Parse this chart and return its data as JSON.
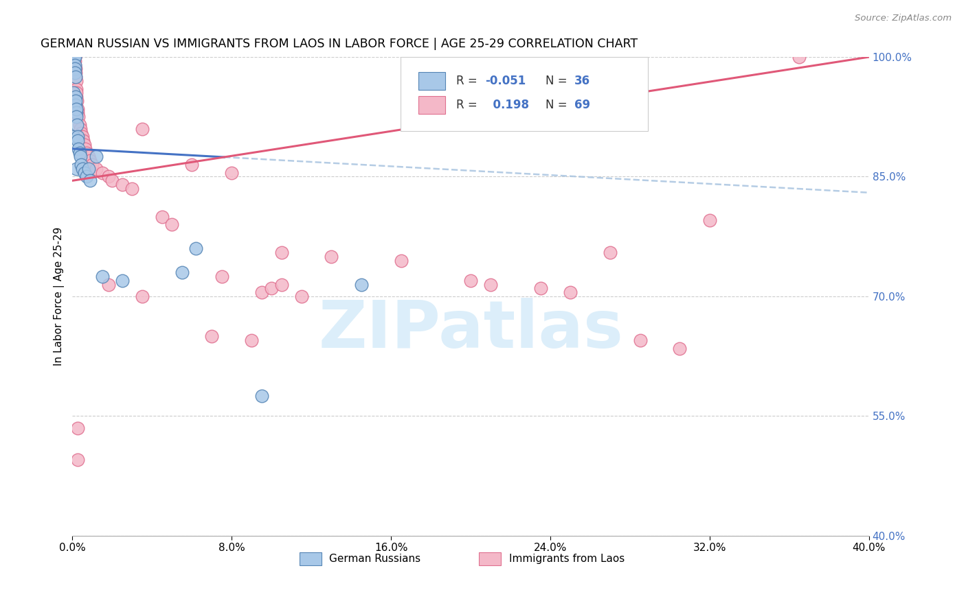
{
  "title": "GERMAN RUSSIAN VS IMMIGRANTS FROM LAOS IN LABOR FORCE | AGE 25-29 CORRELATION CHART",
  "source": "Source: ZipAtlas.com",
  "ylabel": "In Labor Force | Age 25-29",
  "y_ticks": [
    40.0,
    55.0,
    70.0,
    85.0,
    100.0
  ],
  "x_ticks": [
    0.0,
    8.0,
    16.0,
    24.0,
    32.0,
    40.0
  ],
  "legend_label1": "German Russians",
  "legend_label2": "Immigrants from Laos",
  "R1": "-0.051",
  "N1": "36",
  "R2": "0.198",
  "N2": "69",
  "color_blue_fill": "#a8c8e8",
  "color_blue_edge": "#5585b5",
  "color_pink_fill": "#f4b8c8",
  "color_pink_edge": "#e07090",
  "color_blue_line": "#4472c4",
  "color_pink_line": "#e05878",
  "color_blue_dashed": "#a8c4e0",
  "watermark_text_color": "#dceefa",
  "blue_line_x0": 0.0,
  "blue_line_y0": 88.5,
  "blue_line_x1": 40.0,
  "blue_line_y1": 83.0,
  "pink_line_x0": 0.0,
  "pink_line_y0": 84.5,
  "pink_line_x1": 40.0,
  "pink_line_y1": 100.0,
  "blue_x": [
    0.05,
    0.05,
    0.07,
    0.08,
    0.1,
    0.12,
    0.12,
    0.13,
    0.14,
    0.15,
    0.15,
    0.16,
    0.17,
    0.18,
    0.19,
    0.2,
    0.2,
    0.22,
    0.25,
    0.27,
    0.3,
    0.35,
    0.4,
    0.45,
    0.5,
    0.6,
    0.7,
    0.8,
    0.9,
    1.2,
    1.5,
    2.5,
    5.5,
    6.2,
    9.5,
    14.5
  ],
  "blue_y": [
    95.5,
    90.0,
    100.0,
    100.0,
    100.0,
    100.0,
    99.0,
    98.5,
    98.0,
    97.5,
    95.0,
    94.0,
    94.5,
    93.0,
    93.5,
    92.5,
    86.0,
    91.5,
    90.0,
    89.5,
    88.5,
    88.0,
    87.5,
    86.5,
    86.0,
    85.5,
    85.0,
    86.0,
    84.5,
    87.5,
    72.5,
    72.0,
    73.0,
    76.0,
    57.5,
    71.5
  ],
  "pink_x": [
    0.03,
    0.04,
    0.05,
    0.06,
    0.07,
    0.08,
    0.09,
    0.1,
    0.1,
    0.11,
    0.12,
    0.13,
    0.14,
    0.15,
    0.16,
    0.17,
    0.18,
    0.19,
    0.2,
    0.21,
    0.22,
    0.25,
    0.28,
    0.3,
    0.35,
    0.4,
    0.45,
    0.5,
    0.55,
    0.6,
    0.65,
    0.7,
    0.8,
    0.9,
    1.0,
    1.2,
    1.5,
    1.8,
    2.0,
    2.5,
    3.0,
    3.5,
    4.5,
    5.0,
    6.0,
    7.5,
    8.0,
    9.5,
    10.0,
    10.5,
    11.5,
    13.0,
    16.5,
    20.0,
    21.0,
    23.5,
    25.0,
    27.0,
    28.5,
    30.5,
    32.0,
    36.5,
    0.25,
    0.25,
    1.8,
    3.5,
    7.0,
    9.0,
    10.5
  ],
  "pink_y": [
    100.0,
    100.0,
    100.0,
    100.0,
    100.0,
    100.0,
    100.0,
    100.0,
    100.0,
    100.0,
    100.0,
    99.5,
    99.0,
    98.5,
    98.0,
    97.5,
    97.0,
    96.0,
    95.0,
    95.5,
    94.5,
    93.5,
    93.0,
    92.5,
    91.5,
    91.0,
    90.5,
    90.0,
    89.5,
    89.0,
    88.5,
    88.0,
    87.5,
    87.0,
    86.5,
    86.0,
    85.5,
    85.0,
    84.5,
    84.0,
    83.5,
    91.0,
    80.0,
    79.0,
    86.5,
    72.5,
    85.5,
    70.5,
    71.0,
    71.5,
    70.0,
    75.0,
    74.5,
    72.0,
    71.5,
    71.0,
    70.5,
    75.5,
    64.5,
    63.5,
    79.5,
    100.0,
    53.5,
    49.5,
    71.5,
    70.0,
    65.0,
    64.5,
    75.5
  ]
}
